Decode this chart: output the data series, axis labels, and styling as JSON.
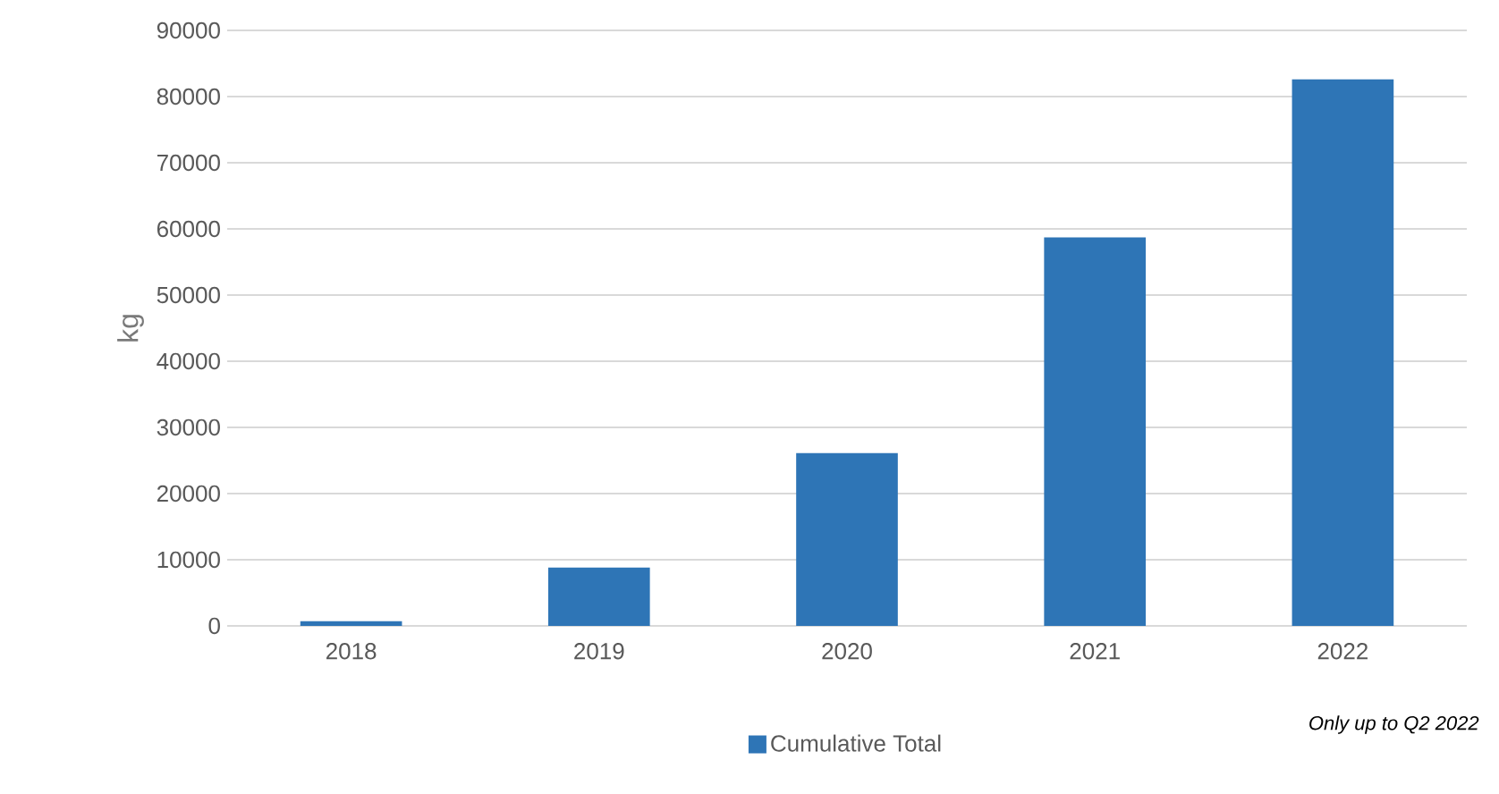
{
  "chart_data": {
    "type": "bar",
    "ylabel": "kg",
    "categories": [
      "2018",
      "2019",
      "2020",
      "2021",
      "2022"
    ],
    "series": [
      {
        "name": "Cumulative Total",
        "color": "#2e75b6",
        "values": [
          700,
          8800,
          26100,
          58700,
          82600
        ]
      }
    ],
    "ylim": [
      0,
      90000
    ],
    "yticks": [
      0,
      10000,
      20000,
      30000,
      40000,
      50000,
      60000,
      70000,
      80000,
      90000
    ],
    "grid": "y",
    "legend": "bottom",
    "annotations": [
      "*Only up to Q2 2022*"
    ]
  }
}
